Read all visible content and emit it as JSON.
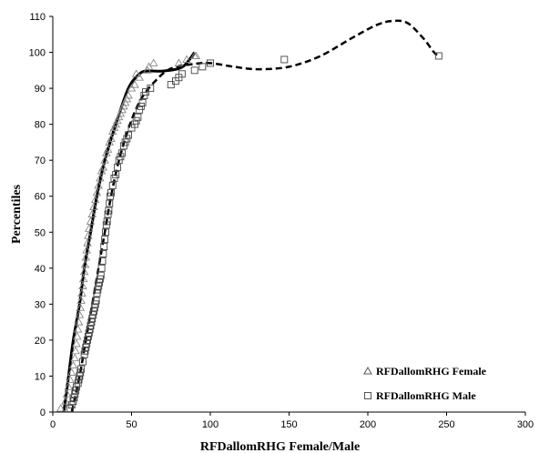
{
  "chart_data": {
    "type": "scatter",
    "xlabel": "RFDallomRHG Female/Male",
    "ylabel": "Percentiles",
    "xlim": [
      0,
      300
    ],
    "ylim": [
      0,
      110
    ],
    "x_ticks": [
      "0",
      "50",
      "100",
      "150",
      "200",
      "250",
      "300"
    ],
    "y_ticks": [
      "0",
      "10",
      "20",
      "30",
      "40",
      "50",
      "60",
      "70",
      "80",
      "90",
      "100",
      "110"
    ],
    "grid": false,
    "legend_position": "bottom-right",
    "series": [
      {
        "name": "RFDallomRHG Female",
        "marker": "triangle",
        "points": [
          [
            5,
            1
          ],
          [
            8,
            3
          ],
          [
            9,
            5
          ],
          [
            10,
            7
          ],
          [
            11,
            9
          ],
          [
            12,
            11
          ],
          [
            13,
            13
          ],
          [
            14,
            15
          ],
          [
            14.5,
            17
          ],
          [
            15,
            19
          ],
          [
            15.5,
            21
          ],
          [
            16,
            23
          ],
          [
            16.5,
            25
          ],
          [
            17,
            27
          ],
          [
            17.5,
            29
          ],
          [
            18,
            31
          ],
          [
            18.5,
            33
          ],
          [
            19,
            35
          ],
          [
            19.5,
            37
          ],
          [
            20,
            39
          ],
          [
            20.5,
            41
          ],
          [
            21,
            43
          ],
          [
            21.5,
            45
          ],
          [
            22,
            47
          ],
          [
            22.5,
            49
          ],
          [
            23,
            51
          ],
          [
            24,
            53
          ],
          [
            25,
            55
          ],
          [
            26,
            57
          ],
          [
            27,
            59
          ],
          [
            28,
            61
          ],
          [
            29,
            63
          ],
          [
            30,
            65
          ],
          [
            31,
            67
          ],
          [
            32,
            68
          ],
          [
            33,
            70
          ],
          [
            34,
            72
          ],
          [
            35,
            73
          ],
          [
            36,
            75
          ],
          [
            37,
            76
          ],
          [
            38,
            78
          ],
          [
            39,
            79
          ],
          [
            40,
            80
          ],
          [
            41,
            81
          ],
          [
            42,
            82
          ],
          [
            43,
            83
          ],
          [
            44,
            84
          ],
          [
            45,
            85
          ],
          [
            46,
            86
          ],
          [
            47,
            87
          ],
          [
            48,
            88
          ],
          [
            50,
            90
          ],
          [
            52,
            91
          ],
          [
            53,
            94
          ],
          [
            55,
            93
          ],
          [
            60,
            95
          ],
          [
            61,
            96
          ],
          [
            64,
            97
          ],
          [
            80,
            97
          ],
          [
            85,
            98
          ],
          [
            90,
            99
          ],
          [
            91,
            99
          ]
        ],
        "trend": [
          [
            7,
            0
          ],
          [
            10,
            10
          ],
          [
            13,
            20
          ],
          [
            17,
            30
          ],
          [
            20,
            40
          ],
          [
            24,
            50
          ],
          [
            28,
            60
          ],
          [
            33,
            70
          ],
          [
            40,
            80
          ],
          [
            48,
            90
          ],
          [
            55,
            94
          ],
          [
            60,
            94.8
          ],
          [
            70,
            94.8
          ],
          [
            80,
            95.5
          ],
          [
            85,
            97
          ],
          [
            90,
            100
          ]
        ]
      },
      {
        "name": "RFDallomRHG Male",
        "marker": "square",
        "points": [
          [
            11,
            1
          ],
          [
            12,
            2
          ],
          [
            13,
            3
          ],
          [
            13.5,
            4
          ],
          [
            14,
            5
          ],
          [
            14.5,
            6
          ],
          [
            15,
            7
          ],
          [
            16,
            8
          ],
          [
            16.5,
            9
          ],
          [
            17,
            10
          ],
          [
            17.5,
            11
          ],
          [
            18,
            12
          ],
          [
            19,
            14
          ],
          [
            20,
            16
          ],
          [
            20.5,
            17
          ],
          [
            21,
            18
          ],
          [
            21.5,
            19
          ],
          [
            22,
            20
          ],
          [
            22.5,
            21
          ],
          [
            23,
            22
          ],
          [
            23.5,
            23
          ],
          [
            24,
            24
          ],
          [
            24.5,
            25
          ],
          [
            25,
            26
          ],
          [
            25.5,
            27
          ],
          [
            26,
            28
          ],
          [
            26.5,
            29
          ],
          [
            27,
            30
          ],
          [
            27.5,
            31
          ],
          [
            28,
            33
          ],
          [
            28.5,
            34
          ],
          [
            29,
            35
          ],
          [
            29.5,
            36
          ],
          [
            30,
            37
          ],
          [
            30.5,
            38
          ],
          [
            31,
            40
          ],
          [
            31.5,
            42
          ],
          [
            32,
            44
          ],
          [
            32.5,
            46
          ],
          [
            33,
            48
          ],
          [
            33.5,
            50
          ],
          [
            34,
            52
          ],
          [
            34.5,
            53
          ],
          [
            35,
            55
          ],
          [
            35.5,
            56
          ],
          [
            36,
            58
          ],
          [
            36.5,
            60
          ],
          [
            37,
            61
          ],
          [
            38,
            63
          ],
          [
            39,
            65
          ],
          [
            40,
            66
          ],
          [
            41,
            68
          ],
          [
            42,
            70
          ],
          [
            43,
            71
          ],
          [
            44,
            72
          ],
          [
            45,
            74
          ],
          [
            46,
            75
          ],
          [
            47,
            76
          ],
          [
            48,
            77
          ],
          [
            50,
            79
          ],
          [
            52,
            80
          ],
          [
            53,
            81
          ],
          [
            54,
            82
          ],
          [
            55,
            84
          ],
          [
            56,
            85
          ],
          [
            57,
            86
          ],
          [
            58,
            88
          ],
          [
            59,
            89
          ],
          [
            62,
            90
          ],
          [
            75,
            91
          ],
          [
            78,
            92
          ],
          [
            80,
            93
          ],
          [
            82,
            94
          ],
          [
            90,
            95
          ],
          [
            95,
            96
          ],
          [
            100,
            97
          ],
          [
            147,
            98
          ],
          [
            245,
            99
          ]
        ],
        "trend": [
          [
            12,
            0
          ],
          [
            17,
            10
          ],
          [
            21,
            20
          ],
          [
            25,
            30
          ],
          [
            29,
            40
          ],
          [
            33,
            50
          ],
          [
            37,
            60
          ],
          [
            42,
            70
          ],
          [
            49,
            80
          ],
          [
            56,
            87
          ],
          [
            65,
            92
          ],
          [
            75,
            95.5
          ],
          [
            90,
            96.8
          ],
          [
            100,
            97
          ],
          [
            115,
            96
          ],
          [
            130,
            95.3
          ],
          [
            150,
            96
          ],
          [
            170,
            99
          ],
          [
            190,
            104
          ],
          [
            205,
            107.5
          ],
          [
            215,
            108.7
          ],
          [
            225,
            108.2
          ],
          [
            235,
            104
          ],
          [
            242,
            100
          ],
          [
            245,
            99
          ]
        ]
      }
    ]
  }
}
